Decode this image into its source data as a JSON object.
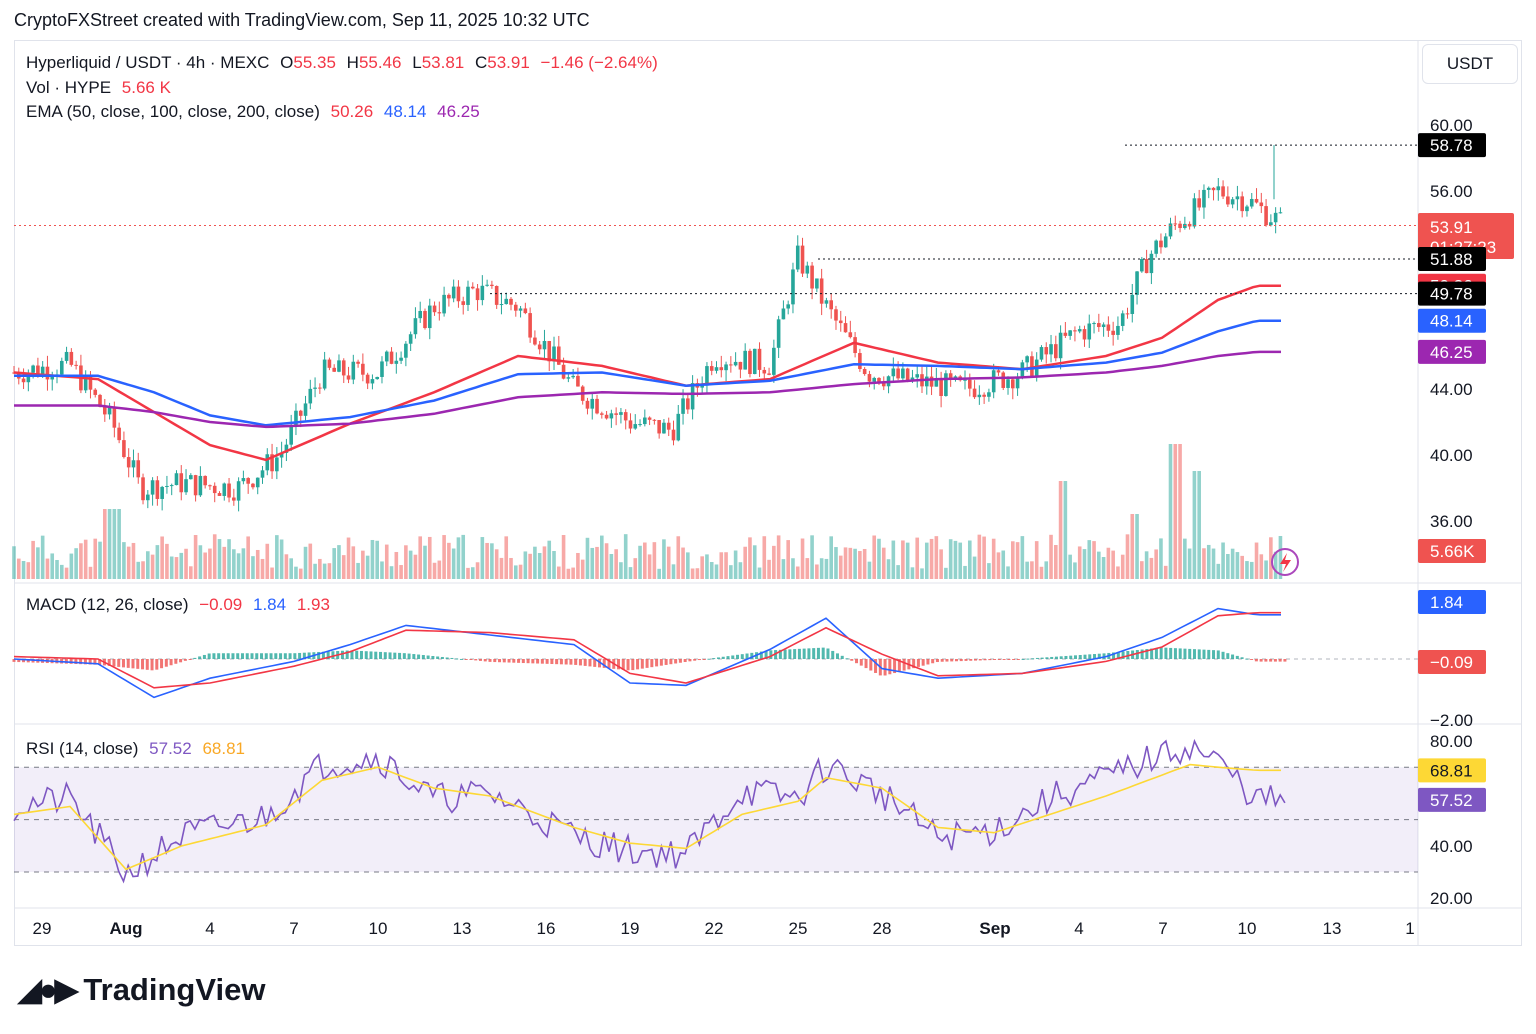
{
  "header": {
    "attribution": "CryptoFXStreet created with TradingView.com, Sep 11, 2025 10:32 UTC"
  },
  "legend": {
    "symbol": "Hyperliquid / USDT · 4h · MEXC",
    "open_label": "O",
    "open": "55.35",
    "high_label": "H",
    "high": "55.46",
    "low_label": "L",
    "low": "53.81",
    "close_label": "C",
    "close": "53.91",
    "change": "−1.46 (−2.64%)",
    "vol_label": "Vol · HYPE",
    "vol_value": "5.66 K",
    "ema_label": "EMA (50, close, 100, close, 200, close)",
    "ema50": "50.26",
    "ema100": "48.14",
    "ema200": "46.25"
  },
  "macd_legend": {
    "label": "MACD (12, 26, close)",
    "hist": "−0.09",
    "macd": "1.84",
    "signal": "1.93"
  },
  "rsi_legend": {
    "label": "RSI (14, close)",
    "rsi": "57.52",
    "ma": "68.81"
  },
  "currency_button": "USDT",
  "price_axis": {
    "ticks": [
      "60.00",
      "56.00",
      "44.00",
      "40.00",
      "36.00"
    ]
  },
  "macd_axis": {
    "ticks": [
      "−2.00"
    ]
  },
  "rsi_axis": {
    "ticks": [
      "80.00",
      "40.00",
      "20.00"
    ]
  },
  "time_axis": {
    "ticks": [
      "29",
      "Aug",
      "4",
      "7",
      "10",
      "13",
      "16",
      "19",
      "22",
      "25",
      "28",
      "Sep",
      "4",
      "7",
      "10",
      "13",
      "1"
    ]
  },
  "price_tags": {
    "high_marker": "58.78",
    "last": "53.91",
    "countdown": "01:27:23",
    "level1": "51.88",
    "ema50": "50.26",
    "level2": "49.78",
    "ema100": "48.14",
    "ema200": "46.25",
    "volume": "5.66K"
  },
  "macd_tags": {
    "macd": "1.84",
    "hist": "−0.09"
  },
  "rsi_tags": {
    "ma": "68.81",
    "rsi": "57.52"
  },
  "footer": {
    "brand": "TradingView"
  },
  "colors": {
    "up": "#26a69a",
    "down": "#ef5350",
    "ema50": "#f23645",
    "ema100": "#2962ff",
    "ema200": "#9c27b0",
    "macd": "#2962ff",
    "signal": "#f23645",
    "rsi": "#7e57c2",
    "rsi_ma": "#fdd835"
  },
  "chart_data": [
    {
      "type": "candlestick",
      "title": "Hyperliquid / USDT · 4h · MEXC",
      "x_range": [
        "Jul 29",
        "Sep 11"
      ],
      "ylim": [
        34,
        62
      ],
      "last_candle": {
        "open": 55.35,
        "high": 55.46,
        "low": 53.81,
        "close": 53.91
      },
      "period_high": 58.78,
      "levels": [
        51.88,
        49.78
      ],
      "series": [
        {
          "name": "EMA 50",
          "x": [
            "Jul 29",
            "Aug 1",
            "Aug 3",
            "Aug 5",
            "Aug 7",
            "Aug 10",
            "Aug 13",
            "Aug 16",
            "Aug 19",
            "Aug 22",
            "Aug 25",
            "Aug 28",
            "Aug 31",
            "Sep 3",
            "Sep 6",
            "Sep 8",
            "Sep 10",
            "Sep 11"
          ],
          "values": [
            45.0,
            44.6,
            42.6,
            40.6,
            39.7,
            41.9,
            43.8,
            46.0,
            45.4,
            44.2,
            44.6,
            46.8,
            45.6,
            45.2,
            46.0,
            47.1,
            49.4,
            50.26
          ]
        },
        {
          "name": "EMA 100",
          "x": [
            "Jul 29",
            "Aug 1",
            "Aug 3",
            "Aug 5",
            "Aug 7",
            "Aug 10",
            "Aug 13",
            "Aug 16",
            "Aug 19",
            "Aug 22",
            "Aug 25",
            "Aug 28",
            "Aug 31",
            "Sep 3",
            "Sep 6",
            "Sep 8",
            "Sep 10",
            "Sep 11"
          ],
          "values": [
            44.8,
            44.8,
            43.8,
            42.4,
            41.8,
            42.3,
            43.3,
            44.9,
            45.0,
            44.2,
            44.5,
            45.5,
            45.4,
            45.2,
            45.6,
            46.2,
            47.5,
            48.14
          ]
        },
        {
          "name": "EMA 200",
          "x": [
            "Jul 29",
            "Aug 1",
            "Aug 3",
            "Aug 5",
            "Aug 7",
            "Aug 10",
            "Aug 13",
            "Aug 16",
            "Aug 19",
            "Aug 22",
            "Aug 25",
            "Aug 28",
            "Aug 31",
            "Sep 3",
            "Sep 6",
            "Sep 8",
            "Sep 10",
            "Sep 11"
          ],
          "values": [
            43.0,
            43.0,
            42.6,
            42.0,
            41.7,
            41.9,
            42.5,
            43.5,
            43.8,
            43.7,
            43.8,
            44.3,
            44.6,
            44.7,
            45.0,
            45.4,
            46.0,
            46.25
          ]
        }
      ],
      "volume_last": "5.66K"
    },
    {
      "type": "line",
      "title": "MACD (12, 26, close)",
      "x": [
        "Jul 29",
        "Aug 1",
        "Aug 3",
        "Aug 5",
        "Aug 8",
        "Aug 10",
        "Aug 12",
        "Aug 15",
        "Aug 18",
        "Aug 20",
        "Aug 22",
        "Aug 25",
        "Aug 27",
        "Aug 29",
        "Aug 31",
        "Sep 3",
        "Sep 6",
        "Sep 8",
        "Sep 10",
        "Sep 11"
      ],
      "series": [
        {
          "name": "MACD",
          "values": [
            0.0,
            -0.2,
            -1.6,
            -0.8,
            -0.1,
            0.6,
            1.4,
            1.0,
            0.6,
            -1.0,
            -1.1,
            0.4,
            1.7,
            -0.4,
            -0.8,
            -0.6,
            0.1,
            0.9,
            2.1,
            1.84
          ]
        },
        {
          "name": "Signal",
          "values": [
            0.1,
            0.0,
            -1.2,
            -1.0,
            -0.3,
            0.3,
            1.2,
            1.1,
            0.8,
            -0.6,
            -1.0,
            0.1,
            1.3,
            0.2,
            -0.7,
            -0.6,
            -0.1,
            0.5,
            1.8,
            1.93
          ]
        }
      ],
      "ylim": [
        -2.3,
        2.6
      ],
      "last": {
        "macd": 1.84,
        "signal": 1.93,
        "hist": -0.09
      }
    },
    {
      "type": "line",
      "title": "RSI (14, close)",
      "x": [
        "Jul 29",
        "Jul 31",
        "Aug 2",
        "Aug 4",
        "Aug 7",
        "Aug 9",
        "Aug 11",
        "Aug 13",
        "Aug 15",
        "Aug 18",
        "Aug 20",
        "Aug 22",
        "Aug 24",
        "Aug 26",
        "Aug 27",
        "Aug 29",
        "Aug 31",
        "Sep 2",
        "Sep 4",
        "Sep 6",
        "Sep 8",
        "Sep 9",
        "Sep 10",
        "Sep 11"
      ],
      "series": [
        {
          "name": "RSI",
          "values": [
            55,
            58,
            29,
            44,
            51,
            71,
            74,
            58,
            60,
            44,
            38,
            37,
            61,
            58,
            71,
            60,
            43,
            46,
            58,
            66,
            75,
            78,
            72,
            57.52
          ]
        },
        {
          "name": "RSI MA",
          "values": [
            52,
            55,
            31,
            40,
            48,
            65,
            70,
            62,
            59,
            47,
            41,
            39,
            52,
            57,
            66,
            62,
            47,
            45,
            52,
            59,
            67,
            71,
            70,
            68.81
          ]
        }
      ],
      "ylim": [
        15,
        85
      ],
      "bands": [
        70,
        50,
        30
      ]
    }
  ]
}
